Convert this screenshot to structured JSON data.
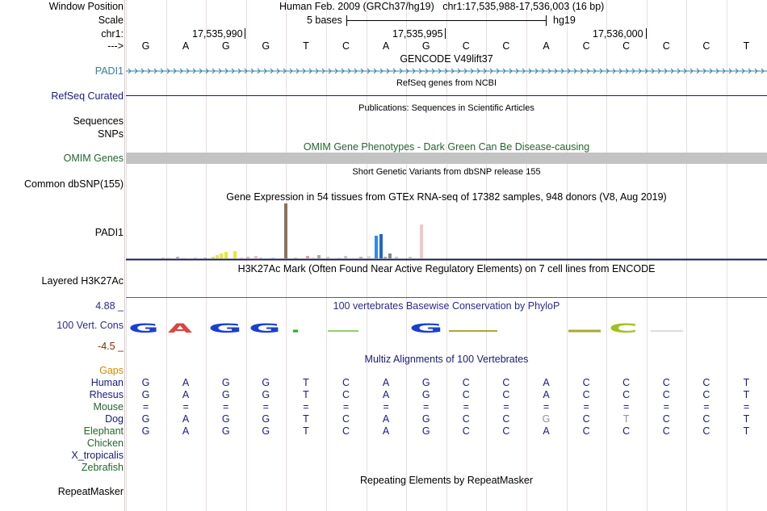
{
  "header": {
    "window_position_label": "Window Position",
    "window_position_value": "Human Feb. 2009 (GRCh37/hg19)   chr1:17,535,988-17,536,003 (16 bp)",
    "scale_label": "Scale",
    "scale_value": "5 bases",
    "assembly": "hg19",
    "chrom_label": "chr1:",
    "ruler_ticks": [
      "17,535,990",
      "17,535,995",
      "17,536,000"
    ],
    "strand_arrow": "--->",
    "sequence": [
      "G",
      "A",
      "G",
      "G",
      "T",
      "C",
      "A",
      "G",
      "C",
      "C",
      "A",
      "C",
      "C",
      "C",
      "C",
      "T"
    ]
  },
  "tracks": {
    "gencode": {
      "title": "GENCODE V49lift37",
      "gene": "PADI1",
      "color": "#2f7fa6"
    },
    "refseq": {
      "title": "RefSeq genes from NCBI",
      "label": "RefSeq Curated",
      "color": "#1a1a80"
    },
    "publications": {
      "title": "Publications: Sequences in Scientific Articles",
      "label_line1": "Sequences",
      "label_line2": "SNPs"
    },
    "omim": {
      "title": "OMIM Gene Phenotypes - Dark Green Can Be Disease-causing",
      "label": "OMIM Genes",
      "color": "#22662b",
      "bar_color": "#c3c3c3"
    },
    "dbsnp": {
      "title": "Short Genetic Variants from dbSNP release 155",
      "label": "Common dbSNP(155)"
    },
    "gtex": {
      "title": "Gene Expression in 54 tissues from GTEx RNA-seq of 17382 samples, 948 donors (V8, Aug 2019)",
      "label": "PADI1"
    },
    "h3k27ac": {
      "title": "H3K27Ac Mark (Often Found Near Active Regulatory Elements) on 7 cell lines from ENCODE",
      "label": "Layered H3K27Ac",
      "line_color": "#7f3fa6"
    },
    "conservation": {
      "title": "100 vertebrates Basewise Conservation by PhyloP",
      "label": "100 Vert. Cons",
      "max_label": "4.88 _",
      "min_label": "-4.5 _",
      "color": "#2b2b8a",
      "min_color": "#8b2500"
    },
    "multiz": {
      "title": "Multiz Alignments of 100 Vertebrates",
      "gaps_label": "Gaps",
      "gaps_color": "#d48a00",
      "species": [
        {
          "name": "Human",
          "color": "#1a1a80",
          "bases": [
            "G",
            "A",
            "G",
            "G",
            "T",
            "C",
            "A",
            "G",
            "C",
            "C",
            "A",
            "C",
            "C",
            "C",
            "C",
            "T"
          ]
        },
        {
          "name": "Rhesus",
          "color": "#1a1a80",
          "bases": [
            "G",
            "A",
            "G",
            "G",
            "T",
            "C",
            "A",
            "G",
            "C",
            "C",
            "A",
            "C",
            "C",
            "C",
            "C",
            "T"
          ]
        },
        {
          "name": "Mouse",
          "color": "#22662b",
          "bases": [
            "=",
            "=",
            "=",
            "=",
            "=",
            "=",
            "=",
            "=",
            "=",
            "=",
            "=",
            "=",
            "=",
            "=",
            "=",
            "="
          ]
        },
        {
          "name": "Dog",
          "color": "#1a1a80",
          "bases": [
            "G",
            "A",
            "G",
            "G",
            "T",
            "C",
            "A",
            "G",
            "C",
            "C",
            "G",
            "C",
            "T",
            "C",
            "C",
            "T"
          ]
        },
        {
          "name": "Elephant",
          "color": "#22662b",
          "bases": [
            "G",
            "A",
            "G",
            "G",
            "T",
            "C",
            "A",
            "G",
            "C",
            "C",
            "A",
            "C",
            "C",
            "C",
            "C",
            "T"
          ]
        },
        {
          "name": "Chicken",
          "color": "#22662b",
          "bases": []
        },
        {
          "name": "X_tropicalis",
          "color": "#1a1a80",
          "bases": []
        },
        {
          "name": "Zebrafish",
          "color": "#22662b",
          "bases": []
        }
      ]
    },
    "repeatmasker": {
      "title": "Repeating Elements by RepeatMasker",
      "label": "RepeatMasker"
    }
  }
}
